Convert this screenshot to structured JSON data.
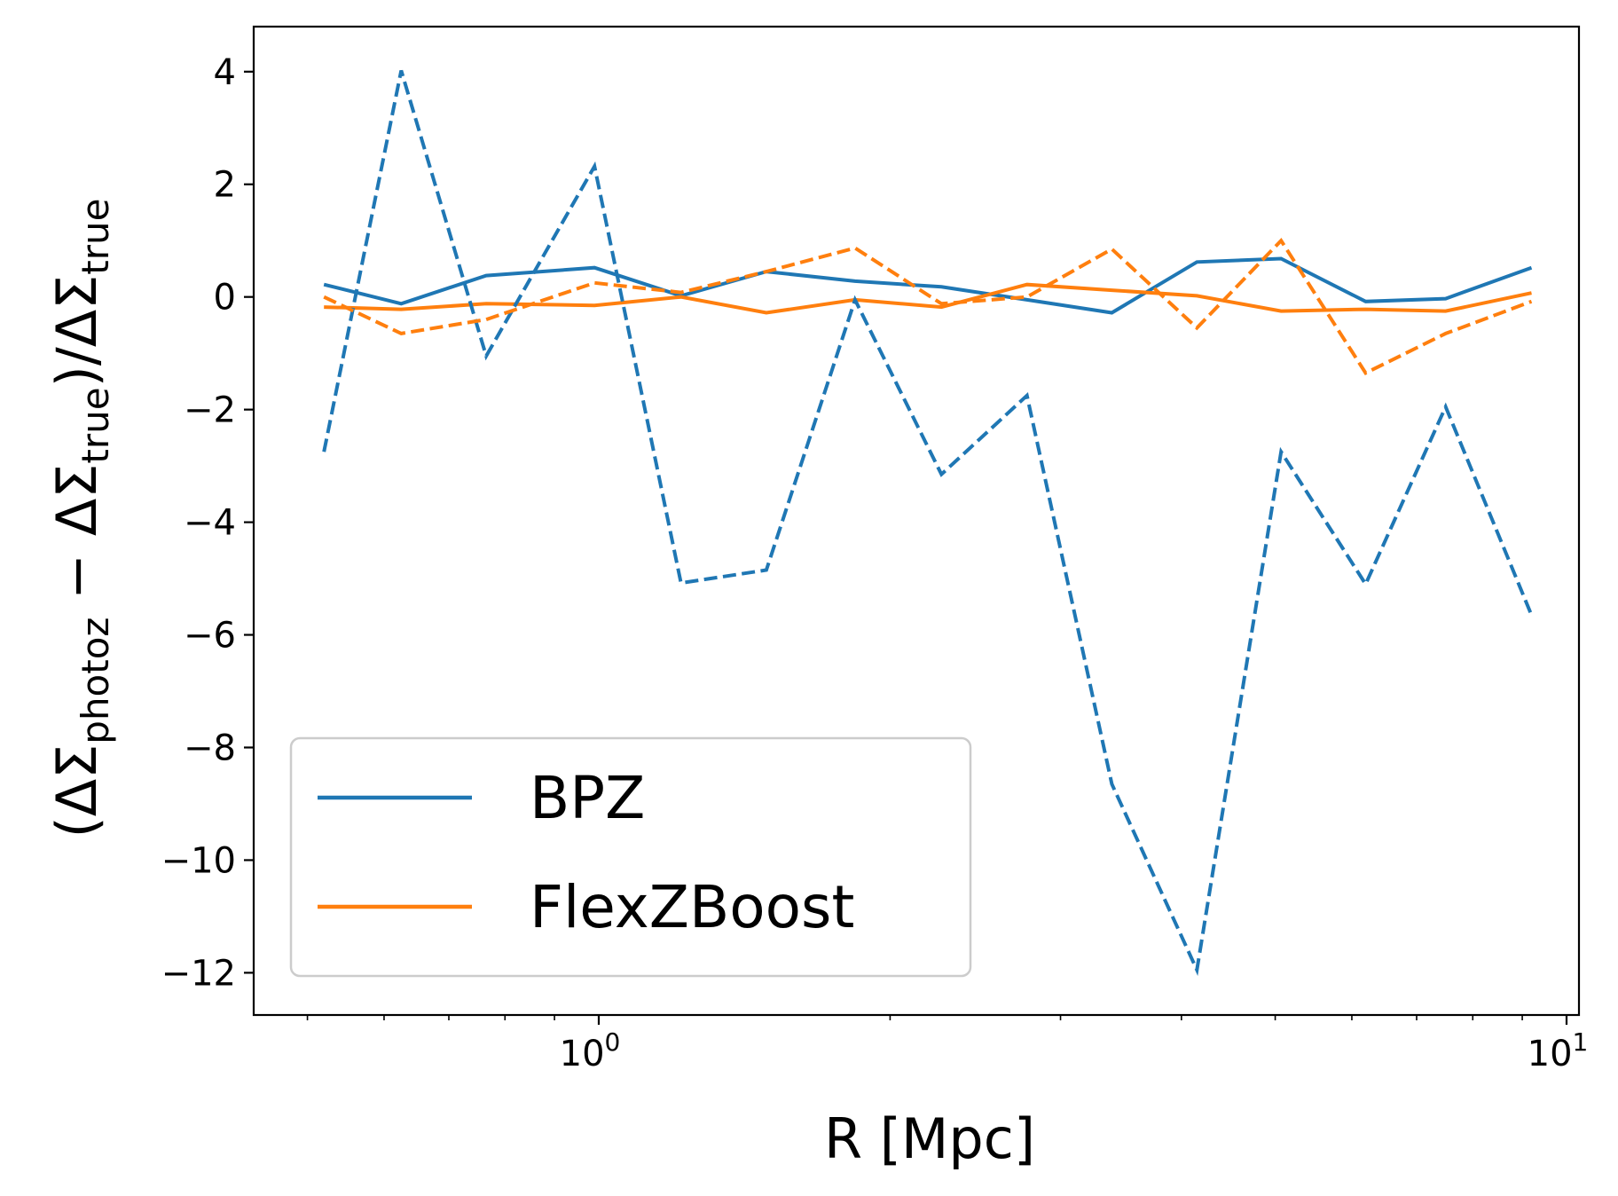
{
  "chart_data": {
    "type": "line",
    "xscale": "log",
    "xlim": [
      0.44,
      10.3
    ],
    "ylim": [
      -12.75,
      4.8
    ],
    "xticks_major": [
      {
        "value": 1,
        "base": "10",
        "exp": "0"
      },
      {
        "value": 10,
        "base": "10",
        "exp": "1"
      }
    ],
    "xticks_minor": [
      0.5,
      0.6,
      0.7,
      0.8,
      0.9,
      2,
      3,
      4,
      5,
      6,
      7,
      8,
      9
    ],
    "yticks": [
      {
        "value": 4,
        "label": "4"
      },
      {
        "value": 2,
        "label": "2"
      },
      {
        "value": 0,
        "label": "0"
      },
      {
        "value": -2,
        "label": "−2"
      },
      {
        "value": -4,
        "label": "−4"
      },
      {
        "value": -6,
        "label": "−6"
      },
      {
        "value": -8,
        "label": "−8"
      },
      {
        "value": -10,
        "label": "−10"
      },
      {
        "value": -12,
        "label": "−12"
      }
    ],
    "xlabel": "R [Mpc]",
    "ylabel": {
      "open": "(ΔΣ",
      "sub1": "photoz",
      "mid": " − ΔΣ",
      "sub2": "true",
      "close": ")/ΔΣ",
      "sub3": "true"
    },
    "x": [
      0.52,
      0.625,
      0.765,
      0.99,
      1.216,
      1.49,
      1.84,
      2.26,
      2.77,
      3.39,
      4.15,
      5.07,
      6.2,
      7.5,
      9.2
    ],
    "series": [
      {
        "name": "BPZ",
        "color": "#1f77b4",
        "dash": "solid",
        "values": [
          0.22,
          -0.12,
          0.38,
          0.52,
          0.02,
          0.45,
          0.28,
          0.18,
          -0.05,
          -0.28,
          0.62,
          0.68,
          -0.08,
          -0.03,
          0.52
        ]
      },
      {
        "name": "FlexZBoost",
        "color": "#ff7f0e",
        "dash": "solid",
        "values": [
          -0.18,
          -0.22,
          -0.12,
          -0.15,
          0.0,
          -0.28,
          -0.05,
          -0.18,
          0.22,
          0.12,
          0.02,
          -0.25,
          -0.22,
          -0.25,
          0.07
        ]
      },
      {
        "color": "#1f77b4",
        "dash": "dashed",
        "values": [
          -2.75,
          4.02,
          -1.05,
          2.32,
          -5.08,
          -4.85,
          -0.05,
          -3.15,
          -1.75,
          -8.65,
          -11.95,
          -2.75,
          -5.1,
          -1.95,
          -5.65
        ]
      },
      {
        "color": "#ff7f0e",
        "dash": "dashed",
        "values": [
          0.0,
          -0.65,
          -0.4,
          0.25,
          0.08,
          0.45,
          0.87,
          -0.12,
          0.0,
          0.85,
          -0.55,
          1.0,
          -1.35,
          -0.65,
          -0.08
        ]
      }
    ],
    "legend": {
      "position": "lower-left",
      "entries": [
        "BPZ",
        "FlexZBoost"
      ]
    },
    "grid": false
  }
}
